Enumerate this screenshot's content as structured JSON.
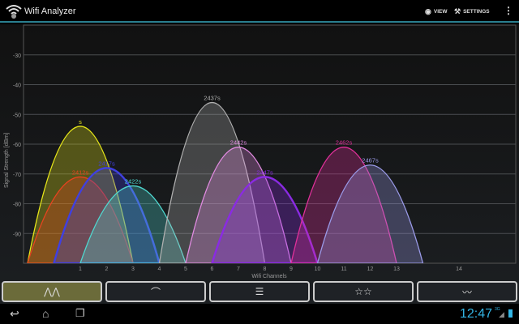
{
  "app": {
    "title": "Wifi Analyzer",
    "actions": {
      "view": "VIEW",
      "settings": "SETTINGS"
    }
  },
  "chart_data": {
    "type": "area",
    "xlabel": "Wifi Channels",
    "ylabel": "Signal Strength [dBm]",
    "ylim": [
      -100,
      -20
    ],
    "yticks": [
      -30,
      -40,
      -50,
      -60,
      -70,
      -80,
      -90
    ],
    "xticks": [
      1,
      2,
      3,
      4,
      5,
      6,
      7,
      8,
      9,
      10,
      11,
      12,
      13,
      14
    ],
    "grid": true,
    "series": [
      {
        "name": "s",
        "channel": 1,
        "signal": -54,
        "color": "#e6e619"
      },
      {
        "name": "2412s",
        "channel": 1,
        "signal": -71,
        "color": "#e8431f"
      },
      {
        "name": "2417s",
        "channel": 2,
        "signal": -68,
        "color": "#4040e0"
      },
      {
        "name": "2422s",
        "channel": 3,
        "signal": -74,
        "color": "#4fd8d0"
      },
      {
        "name": "2437s",
        "channel": 6,
        "signal": -46,
        "color": "#b0b0b0"
      },
      {
        "name": "2442s",
        "channel": 7,
        "signal": -61,
        "color": "#e08ae0"
      },
      {
        "name": "2447s",
        "channel": 8,
        "signal": -71,
        "color": "#8a2be2"
      },
      {
        "name": "2462s",
        "channel": 11,
        "signal": -61,
        "color": "#e0309a"
      },
      {
        "name": "2467s",
        "channel": 12,
        "signal": -67,
        "color": "#9a9ae8"
      }
    ]
  },
  "tabs": [
    {
      "icon": "channel-graph-icon",
      "active": true
    },
    {
      "icon": "signal-meter-icon",
      "active": false
    },
    {
      "icon": "ap-list-icon",
      "active": false
    },
    {
      "icon": "channel-rating-icon",
      "active": false
    },
    {
      "icon": "time-graph-icon",
      "active": false
    }
  ],
  "status": {
    "time": "12:47",
    "network": "3G"
  },
  "colors": {
    "accent": "#2a7f8f",
    "clock": "#33b5e5",
    "active_tab": "#6b6b3a"
  }
}
